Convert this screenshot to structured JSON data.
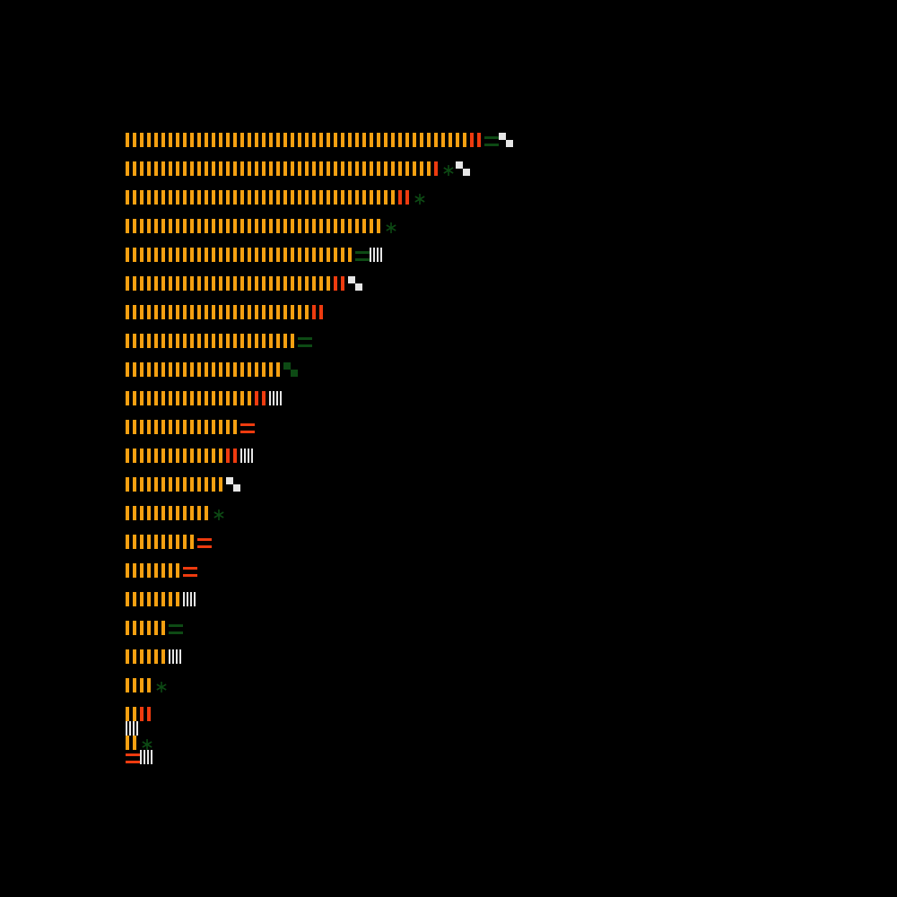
{
  "chart_data": {
    "type": "bar",
    "unit": 1,
    "rows": [
      {
        "segments": [
          {
            "kind": "orange",
            "count": 48
          },
          {
            "kind": "red",
            "count": 2
          },
          {
            "kind": "green-eq",
            "count": 2
          },
          {
            "kind": "checker",
            "count": 2
          }
        ]
      },
      {
        "segments": [
          {
            "kind": "orange",
            "count": 43
          },
          {
            "kind": "red",
            "count": 1
          },
          {
            "kind": "star",
            "count": 2
          },
          {
            "kind": "checker",
            "count": 2
          }
        ]
      },
      {
        "segments": [
          {
            "kind": "orange",
            "count": 38
          },
          {
            "kind": "red",
            "count": 2
          },
          {
            "kind": "star",
            "count": 2
          }
        ]
      },
      {
        "segments": [
          {
            "kind": "orange",
            "count": 36
          },
          {
            "kind": "star",
            "count": 2
          }
        ]
      },
      {
        "segments": [
          {
            "kind": "orange",
            "count": 32
          },
          {
            "kind": "green-eq",
            "count": 2
          },
          {
            "kind": "white",
            "count": 2
          }
        ]
      },
      {
        "segments": [
          {
            "kind": "orange",
            "count": 29
          },
          {
            "kind": "red",
            "count": 2
          },
          {
            "kind": "checker",
            "count": 2
          }
        ]
      },
      {
        "segments": [
          {
            "kind": "orange",
            "count": 26
          },
          {
            "kind": "red",
            "count": 2
          }
        ]
      },
      {
        "segments": [
          {
            "kind": "orange",
            "count": 24
          },
          {
            "kind": "green-eq",
            "count": 2
          }
        ]
      },
      {
        "segments": [
          {
            "kind": "orange",
            "count": 22
          },
          {
            "kind": "green-check",
            "count": 2
          }
        ]
      },
      {
        "segments": [
          {
            "kind": "orange",
            "count": 18
          },
          {
            "kind": "red",
            "count": 2
          },
          {
            "kind": "white",
            "count": 2
          }
        ]
      },
      {
        "segments": [
          {
            "kind": "orange",
            "count": 16
          },
          {
            "kind": "red-eq",
            "count": 2
          }
        ]
      },
      {
        "segments": [
          {
            "kind": "orange",
            "count": 14
          },
          {
            "kind": "red",
            "count": 2
          },
          {
            "kind": "white",
            "count": 2
          }
        ]
      },
      {
        "segments": [
          {
            "kind": "orange",
            "count": 14
          },
          {
            "kind": "checker",
            "count": 2
          }
        ]
      },
      {
        "segments": [
          {
            "kind": "orange",
            "count": 12
          },
          {
            "kind": "star",
            "count": 2
          }
        ]
      },
      {
        "segments": [
          {
            "kind": "orange",
            "count": 10
          },
          {
            "kind": "red-eq",
            "count": 2
          }
        ]
      },
      {
        "segments": [
          {
            "kind": "orange",
            "count": 8
          },
          {
            "kind": "red-eq",
            "count": 2
          }
        ]
      },
      {
        "segments": [
          {
            "kind": "orange",
            "count": 8
          },
          {
            "kind": "white",
            "count": 2
          }
        ]
      },
      {
        "segments": [
          {
            "kind": "orange",
            "count": 6
          },
          {
            "kind": "green-eq",
            "count": 2
          }
        ]
      },
      {
        "segments": [
          {
            "kind": "orange",
            "count": 6
          },
          {
            "kind": "white",
            "count": 2
          }
        ]
      },
      {
        "segments": [
          {
            "kind": "orange",
            "count": 4
          },
          {
            "kind": "star",
            "count": 2
          }
        ]
      },
      {
        "segments": [
          {
            "kind": "orange",
            "count": 2
          },
          {
            "kind": "red",
            "count": 2
          }
        ]
      },
      {
        "segments": [
          {
            "kind": "white",
            "count": 2
          }
        ]
      },
      {
        "segments": [
          {
            "kind": "orange",
            "count": 2
          },
          {
            "kind": "star",
            "count": 2
          }
        ]
      },
      {
        "segments": [
          {
            "kind": "red-eq",
            "count": 2
          },
          {
            "kind": "white",
            "count": 2
          }
        ]
      }
    ],
    "legend": [],
    "grid": false,
    "colors": {
      "background": "#000000",
      "orange": "#f5a011",
      "red": "#ee3b0f",
      "green": "#0d4a14",
      "white": "#e6e6e6"
    }
  }
}
